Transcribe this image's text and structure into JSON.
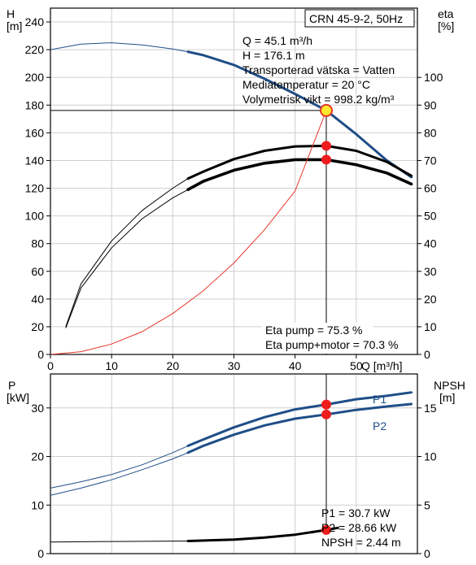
{
  "chart_data": [
    {
      "type": "line",
      "title": "CRN 45-9-2, 50Hz",
      "x_axis": {
        "label": "Q [m³/h]",
        "ticks": [
          "0",
          "10",
          "20",
          "30",
          "40",
          "50"
        ],
        "range": [
          0,
          60
        ]
      },
      "y_axis_left": {
        "label_line1": "H",
        "label_line2": "[m]",
        "ticks": [
          "0",
          "20",
          "40",
          "60",
          "80",
          "100",
          "120",
          "140",
          "160",
          "180",
          "200",
          "220",
          "240"
        ],
        "range": [
          0,
          250
        ]
      },
      "y_axis_right": {
        "label_line1": "eta",
        "label_line2": "[%]",
        "ticks": [
          "0",
          "10",
          "20",
          "30",
          "40",
          "50",
          "60",
          "70",
          "80",
          "90",
          "100"
        ],
        "range": [
          0,
          125
        ]
      },
      "grid": true,
      "series": [
        {
          "key": "head",
          "axis": "left",
          "color": "#1f4e87",
          "thin": [
            [
              0,
              220
            ],
            [
              5,
              224
            ],
            [
              10,
              225
            ],
            [
              15,
              223.5
            ],
            [
              20,
              220.5
            ],
            [
              22.5,
              218.5
            ]
          ],
          "thick": [
            [
              22.5,
              218.5
            ],
            [
              25,
              216
            ],
            [
              30,
              209
            ],
            [
              35,
              199
            ],
            [
              40,
              188
            ],
            [
              45.1,
              176.1
            ],
            [
              50,
              159
            ],
            [
              55,
              140
            ],
            [
              59,
              128
            ]
          ]
        },
        {
          "key": "eta_pump",
          "axis": "right",
          "color": "#000000",
          "thin": [
            [
              2.5,
              10
            ],
            [
              5,
              25.5
            ],
            [
              10,
              41
            ],
            [
              15,
              52
            ],
            [
              20,
              60
            ],
            [
              22.5,
              63.5
            ]
          ],
          "thick": [
            [
              22.5,
              63.5
            ],
            [
              25,
              66
            ],
            [
              30,
              70.5
            ],
            [
              35,
              73.5
            ],
            [
              40,
              75.1
            ],
            [
              45.1,
              75.3
            ],
            [
              50,
              73.5
            ],
            [
              55,
              69.5
            ],
            [
              59,
              64.5
            ]
          ]
        },
        {
          "key": "eta_pump_motor",
          "axis": "right",
          "color": "#000000",
          "thin": [
            [
              2.5,
              9.5
            ],
            [
              5,
              24
            ],
            [
              10,
              38.5
            ],
            [
              15,
              49
            ],
            [
              20,
              56.5
            ],
            [
              22.5,
              59.5
            ]
          ],
          "thick": [
            [
              22.5,
              59.5
            ],
            [
              25,
              62.5
            ],
            [
              30,
              66.5
            ],
            [
              35,
              69
            ],
            [
              40,
              70.3
            ],
            [
              45.1,
              70.3
            ],
            [
              50,
              68.5
            ],
            [
              55,
              65.5
            ],
            [
              59,
              61.5
            ]
          ]
        },
        {
          "key": "system_curve",
          "axis": "left",
          "color": "#e8362b",
          "points": [
            [
              0,
              0
            ],
            [
              5,
              2
            ],
            [
              10,
              7.5
            ],
            [
              15,
              16.5
            ],
            [
              20,
              29.5
            ],
            [
              25,
              46
            ],
            [
              30,
              66
            ],
            [
              35,
              90
            ],
            [
              40,
              118
            ],
            [
              45.1,
              176.1
            ]
          ]
        }
      ],
      "operating_point": {
        "q": 45.1,
        "h": 176.1
      },
      "efficiency_points": [
        75.3,
        70.3
      ],
      "info": {
        "q": "Q = 45.1 m³/h",
        "h": "H = 176.1 m",
        "liquid": "Transporterad vätska = Vatten",
        "temperature": "Mediatemperatur = 20 °C",
        "density": "Volymetrisk vikt = 998.2 kg/m³",
        "eta_pump": "Eta pump = 75.3 %",
        "eta_pump_motor": "Eta pump+motor = 70.3 %"
      }
    },
    {
      "type": "line",
      "x_axis": {
        "range": [
          0,
          60
        ]
      },
      "y_axis_left": {
        "label_line1": "P",
        "label_line2": "[kW]",
        "ticks": [
          "0",
          "10",
          "20",
          "30"
        ],
        "range": [
          0,
          37
        ]
      },
      "y_axis_right": {
        "label_line1": "NPSH",
        "label_line2": "[m]",
        "ticks": [
          "0",
          "5",
          "10",
          "15"
        ],
        "range": [
          0,
          18.5
        ]
      },
      "grid": true,
      "series": [
        {
          "key": "p1",
          "name": "P1",
          "axis": "left",
          "color": "#1f4e87",
          "thin": [
            [
              0,
              13.5
            ],
            [
              5,
              14.8
            ],
            [
              10,
              16.3
            ],
            [
              15,
              18.3
            ],
            [
              20,
              20.8
            ],
            [
              22.5,
              22.2
            ]
          ],
          "thick": [
            [
              22.5,
              22.2
            ],
            [
              25,
              23.5
            ],
            [
              30,
              26
            ],
            [
              35,
              28.1
            ],
            [
              40,
              29.7
            ],
            [
              45.1,
              30.7
            ],
            [
              50,
              31.8
            ],
            [
              55,
              32.5
            ],
            [
              59,
              33.2
            ]
          ]
        },
        {
          "key": "p2",
          "name": "P2",
          "axis": "left",
          "color": "#1f4e87",
          "thin": [
            [
              0,
              12
            ],
            [
              5,
              13.5
            ],
            [
              10,
              15.2
            ],
            [
              15,
              17.3
            ],
            [
              20,
              19.5
            ],
            [
              22.5,
              20.8
            ]
          ],
          "thick": [
            [
              22.5,
              20.8
            ],
            [
              25,
              22.2
            ],
            [
              30,
              24.5
            ],
            [
              35,
              26.4
            ],
            [
              40,
              27.8
            ],
            [
              45.1,
              28.66
            ],
            [
              50,
              29.6
            ],
            [
              55,
              30.3
            ],
            [
              59,
              30.8
            ]
          ]
        },
        {
          "key": "npsh",
          "axis": "right",
          "color": "#000000",
          "thin": [
            [
              0,
              1.2
            ],
            [
              10,
              1.25
            ],
            [
              22.5,
              1.3
            ]
          ],
          "thick": [
            [
              22.5,
              1.3
            ],
            [
              30,
              1.45
            ],
            [
              35,
              1.65
            ],
            [
              40,
              1.95
            ],
            [
              45.1,
              2.44
            ],
            [
              47,
              2.65
            ]
          ]
        }
      ],
      "info": {
        "p1": "P1 = 30.7 kW",
        "p2": "P2 = 28.66 kW",
        "npsh": "NPSH = 2.44 m"
      },
      "operating_q": 45.1
    }
  ]
}
